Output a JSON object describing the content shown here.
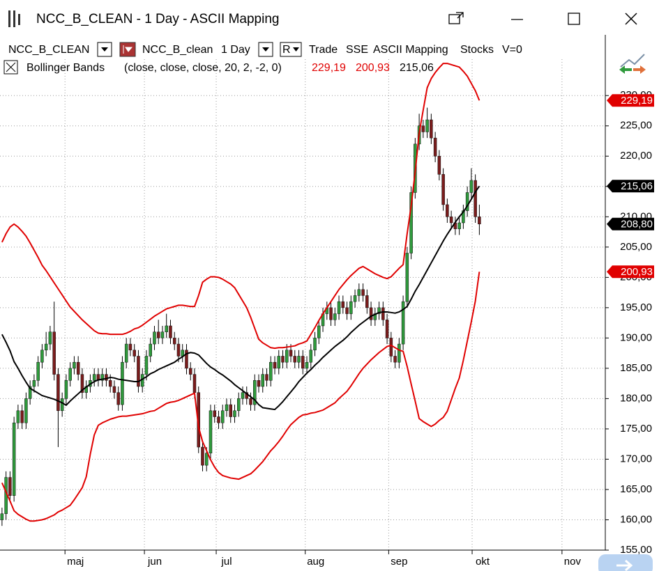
{
  "window": {
    "title": "NCC_B_CLEAN - 1 Day - ASCII Mapping"
  },
  "toolbar": {
    "symbol": "NCC_B_CLEAN",
    "name": "NCC_B_clean",
    "period": "1 Day",
    "mode": "R",
    "items": [
      "Trade",
      "SSE",
      "ASCII Mapping",
      "Stocks",
      "V=0"
    ]
  },
  "indicator": {
    "name": "Bollinger Bands",
    "params": "(close, close, close, 20, 2, -2, 0)",
    "values": [
      {
        "label": "229,19",
        "color": "#e00000"
      },
      {
        "label": "200,93",
        "color": "#e00000"
      },
      {
        "label": "215,06",
        "color": "#000000"
      }
    ]
  },
  "chart_data": {
    "type": "candlestick",
    "up_color": "#2f9a3c",
    "down_color": "#7a1c1c",
    "wick_color": "#000000",
    "x": [
      0,
      1,
      2,
      3,
      4,
      5,
      6,
      7,
      8,
      9,
      10,
      11,
      12,
      13,
      14,
      15,
      16,
      17,
      18,
      19,
      20,
      21,
      22,
      23,
      24,
      25,
      26,
      27,
      28,
      29,
      30,
      31,
      32,
      33,
      34,
      35,
      36,
      37,
      38,
      39,
      40,
      41,
      42,
      43,
      44,
      45,
      46,
      47,
      48,
      49,
      50,
      51,
      52,
      53,
      54,
      55,
      56,
      57,
      58,
      59,
      60,
      61,
      62,
      63,
      64,
      65,
      66,
      67,
      68,
      69,
      70,
      71,
      72,
      73,
      74,
      75,
      76,
      77,
      78,
      79,
      80,
      81,
      82,
      83,
      84,
      85,
      86,
      87,
      88,
      89,
      90,
      91,
      92,
      93,
      94,
      95,
      96,
      97,
      98,
      99,
      100,
      101,
      102,
      103,
      104,
      105,
      106,
      107,
      108,
      109,
      110,
      111,
      112,
      113,
      114,
      115,
      116,
      117,
      118,
      119
    ],
    "open": [
      160,
      161,
      167,
      164,
      176,
      178,
      176,
      180,
      182,
      183,
      186,
      188,
      189,
      191,
      184,
      178,
      180,
      183,
      185,
      186,
      184,
      181,
      182,
      183,
      184,
      183,
      184,
      183,
      182,
      181,
      179,
      186,
      189,
      188,
      187,
      182,
      184,
      187,
      189,
      191,
      190,
      191,
      192,
      190,
      189,
      187,
      188,
      185,
      184,
      181,
      172,
      169,
      171,
      178,
      177,
      176,
      178,
      179,
      177,
      178,
      180,
      181,
      180,
      179,
      183,
      182,
      184,
      183,
      186,
      185,
      187,
      186,
      188,
      187,
      186,
      187,
      185,
      186,
      188,
      190,
      192,
      194,
      195,
      193,
      194,
      196,
      195,
      194,
      196,
      197,
      198,
      197,
      195,
      193,
      194,
      195,
      193,
      190,
      187,
      186,
      189,
      196,
      204,
      214,
      222,
      225,
      224,
      226,
      223,
      220,
      217,
      212,
      210,
      209,
      208,
      209,
      211,
      214,
      216,
      210
    ],
    "high": [
      162,
      168,
      168,
      177,
      179,
      179,
      181,
      183,
      184,
      187,
      189,
      191,
      192,
      196,
      185,
      181,
      184,
      186,
      187,
      187,
      185,
      183,
      184,
      185,
      185,
      185,
      185,
      184,
      183,
      182,
      187,
      190,
      190,
      189,
      188,
      185,
      188,
      190,
      192,
      193,
      192,
      194,
      193,
      191,
      190,
      189,
      189,
      186,
      185,
      182,
      173,
      172,
      179,
      179,
      178,
      179,
      180,
      180,
      179,
      181,
      182,
      182,
      181,
      184,
      184,
      185,
      185,
      187,
      187,
      188,
      188,
      189,
      189,
      188,
      188,
      188,
      187,
      189,
      191,
      193,
      195,
      196,
      196,
      195,
      197,
      197,
      196,
      197,
      198,
      199,
      199,
      198,
      196,
      195,
      196,
      196,
      194,
      191,
      188,
      190,
      197,
      205,
      215,
      223,
      227,
      226,
      228,
      227,
      224,
      221,
      218,
      213,
      211,
      210,
      210,
      212,
      215,
      218,
      217,
      212
    ],
    "low": [
      159,
      160,
      163,
      163,
      175,
      175,
      175,
      179,
      181,
      182,
      185,
      187,
      188,
      183,
      172,
      177,
      179,
      182,
      184,
      183,
      180,
      180,
      181,
      182,
      182,
      182,
      182,
      181,
      180,
      178,
      178,
      185,
      187,
      186,
      181,
      181,
      183,
      186,
      188,
      189,
      189,
      190,
      189,
      188,
      186,
      186,
      184,
      183,
      180,
      171,
      168,
      168,
      170,
      176,
      175,
      175,
      177,
      176,
      176,
      177,
      179,
      179,
      178,
      178,
      181,
      181,
      182,
      182,
      184,
      184,
      185,
      185,
      186,
      185,
      185,
      184,
      184,
      185,
      187,
      189,
      191,
      193,
      192,
      192,
      193,
      194,
      193,
      193,
      195,
      196,
      196,
      194,
      192,
      192,
      193,
      192,
      189,
      186,
      185,
      185,
      188,
      195,
      203,
      213,
      221,
      223,
      223,
      222,
      219,
      216,
      211,
      209,
      208,
      207,
      207,
      208,
      210,
      213,
      209,
      207
    ],
    "close": [
      161,
      167,
      164,
      176,
      178,
      176,
      180,
      182,
      183,
      186,
      188,
      189,
      191,
      184,
      178,
      180,
      183,
      185,
      186,
      184,
      181,
      182,
      183,
      184,
      183,
      184,
      183,
      182,
      181,
      179,
      186,
      189,
      188,
      187,
      182,
      184,
      187,
      189,
      191,
      190,
      191,
      192,
      190,
      189,
      187,
      188,
      185,
      184,
      181,
      172,
      169,
      171,
      178,
      177,
      176,
      178,
      179,
      177,
      178,
      180,
      181,
      180,
      179,
      183,
      182,
      184,
      183,
      186,
      185,
      187,
      186,
      188,
      187,
      186,
      187,
      185,
      186,
      188,
      190,
      192,
      194,
      195,
      193,
      194,
      196,
      195,
      194,
      196,
      197,
      198,
      197,
      195,
      193,
      194,
      195,
      193,
      190,
      187,
      186,
      189,
      196,
      204,
      214,
      222,
      225,
      224,
      226,
      223,
      220,
      217,
      212,
      210,
      209,
      208,
      209,
      211,
      214,
      216,
      210,
      208.8
    ],
    "bands": {
      "color": "#e00000",
      "upper": [
        205.8,
        207.2,
        208.3,
        208.8,
        208.3,
        207.6,
        206.8,
        205.7,
        204.5,
        203.3,
        202.0,
        201.1,
        200.1,
        199.1,
        198.1,
        197.1,
        196.1,
        195.1,
        194.4,
        193.7,
        193.0,
        192.4,
        191.8,
        191.2,
        190.8,
        190.7,
        190.7,
        190.6,
        190.6,
        190.6,
        190.6,
        190.8,
        191.1,
        191.5,
        191.7,
        192.1,
        192.6,
        193.1,
        193.6,
        194.0,
        194.4,
        194.8,
        195.0,
        195.2,
        195.4,
        195.4,
        195.3,
        195.2,
        195.2,
        197.0,
        199.2,
        199.7,
        200.1,
        200.1,
        200.0,
        199.7,
        199.3,
        198.9,
        198.3,
        197.2,
        196.1,
        195.0,
        193.4,
        191.6,
        189.8,
        189.2,
        188.8,
        188.4,
        188.3,
        188.4,
        188.4,
        188.5,
        188.6,
        188.7,
        189.0,
        189.2,
        189.5,
        190.6,
        191.7,
        192.9,
        194.0,
        195.0,
        196.0,
        197.0,
        198.0,
        198.8,
        199.6,
        200.3,
        200.9,
        201.5,
        201.8,
        201.4,
        201.0,
        200.6,
        200.3,
        200.0,
        199.8,
        200.1,
        200.8,
        201.5,
        202.1,
        207.2,
        211.8,
        217.4,
        223.8,
        227.6,
        231.3,
        232.8,
        233.8,
        234.6,
        235.3,
        235.3,
        235.1,
        234.9,
        234.7,
        234.0,
        233.2,
        232.0,
        230.8,
        229.19
      ],
      "lower": [
        166.1,
        164.6,
        163.1,
        161.5,
        160.9,
        160.5,
        160.1,
        159.8,
        159.8,
        159.9,
        160.0,
        160.2,
        160.5,
        160.8,
        161.3,
        161.6,
        162.0,
        162.4,
        163.3,
        164.3,
        165.3,
        167.1,
        170.8,
        174.0,
        175.6,
        176.0,
        176.3,
        176.6,
        176.8,
        177.0,
        177.1,
        177.1,
        177.2,
        177.3,
        177.4,
        177.5,
        177.7,
        177.9,
        178.0,
        178.4,
        178.8,
        179.2,
        179.4,
        179.5,
        179.7,
        180.0,
        180.3,
        180.6,
        180.9,
        175.3,
        172.9,
        171.4,
        169.9,
        168.7,
        167.8,
        167.3,
        167.1,
        166.9,
        166.8,
        166.7,
        167.0,
        167.3,
        167.6,
        168.2,
        168.9,
        169.6,
        170.5,
        171.4,
        172.1,
        172.9,
        173.8,
        174.8,
        175.7,
        176.3,
        176.9,
        177.3,
        177.4,
        177.6,
        177.7,
        177.9,
        178.1,
        178.5,
        178.9,
        179.3,
        180.0,
        180.6,
        181.2,
        182.1,
        183.1,
        184.1,
        185.0,
        185.7,
        186.4,
        187.0,
        187.6,
        188.1,
        188.6,
        188.8,
        188.4,
        188.0,
        187.8,
        185.3,
        182.4,
        179.6,
        176.7,
        176.2,
        175.8,
        175.4,
        175.8,
        176.4,
        176.9,
        177.9,
        179.8,
        181.7,
        183.4,
        186.3,
        189.5,
        192.7,
        196.1,
        200.93
      ]
    },
    "middle": {
      "color": "#000000",
      "values": [
        190.6,
        189.3,
        187.9,
        186.1,
        185.0,
        183.8,
        182.7,
        181.7,
        181.3,
        180.9,
        180.5,
        180.3,
        180.1,
        179.9,
        179.6,
        179.3,
        178.9,
        179.6,
        180.2,
        180.8,
        181.4,
        181.9,
        182.4,
        182.8,
        183.1,
        183.2,
        183.3,
        183.5,
        183.4,
        183.2,
        183.1,
        183.0,
        182.9,
        182.8,
        182.8,
        183.2,
        183.6,
        184.1,
        184.4,
        184.8,
        185.1,
        185.4,
        185.7,
        186.0,
        186.5,
        186.9,
        187.4,
        187.6,
        187.5,
        187.2,
        186.5,
        185.8,
        185.2,
        184.8,
        184.3,
        183.9,
        183.4,
        182.9,
        182.3,
        181.8,
        181.3,
        180.8,
        180.3,
        179.8,
        179.0,
        178.5,
        178.4,
        178.3,
        178.2,
        178.8,
        179.5,
        180.3,
        181.1,
        181.9,
        182.8,
        183.5,
        184.2,
        184.8,
        185.5,
        186.1,
        186.8,
        187.4,
        188.0,
        188.6,
        189.1,
        189.6,
        190.2,
        190.9,
        191.5,
        192.1,
        192.6,
        193.1,
        193.6,
        193.9,
        194.2,
        194.3,
        194.3,
        194.2,
        194.1,
        194.3,
        194.7,
        195.2,
        196.4,
        197.7,
        198.8,
        200.0,
        201.2,
        202.4,
        203.6,
        204.8,
        206.0,
        207.1,
        208.1,
        209.1,
        210.0,
        210.8,
        211.8,
        212.9,
        214.1,
        215.06
      ]
    },
    "price_labels": [
      {
        "value": 229.19,
        "label": "229,19",
        "color": "#e00000"
      },
      {
        "value": 215.06,
        "label": "215,06",
        "color": "#000000"
      },
      {
        "value": 208.8,
        "label": "208,80",
        "color": "#000000"
      },
      {
        "value": 200.93,
        "label": "200,93",
        "color": "#e00000"
      }
    ],
    "xlim": [
      -0.5,
      150.4
    ],
    "xticks": [
      {
        "value": 15.7,
        "label": "maj"
      },
      {
        "value": 35.5,
        "label": "jun"
      },
      {
        "value": 53.4,
        "label": "jul"
      },
      {
        "value": 75.6,
        "label": "aug"
      },
      {
        "value": 96.4,
        "label": "sep"
      },
      {
        "value": 117.2,
        "label": "okt"
      },
      {
        "value": 139.6,
        "label": "nov"
      }
    ],
    "ylim": [
      155,
      236
    ],
    "yticks": [
      {
        "value": 155,
        "label": "155,00"
      },
      {
        "value": 160,
        "label": "160,00"
      },
      {
        "value": 165,
        "label": "165,00"
      },
      {
        "value": 170,
        "label": "170,00"
      },
      {
        "value": 175,
        "label": "175,00"
      },
      {
        "value": 180,
        "label": "180,00"
      },
      {
        "value": 185,
        "label": "185,00"
      },
      {
        "value": 190,
        "label": "190,00"
      },
      {
        "value": 195,
        "label": "195,00"
      },
      {
        "value": 200,
        "label": "200,00"
      },
      {
        "value": 205,
        "label": "205,00"
      },
      {
        "value": 210,
        "label": "210,00"
      },
      {
        "value": 215,
        "label": "215,00"
      },
      {
        "value": 220,
        "label": "220,00"
      },
      {
        "value": 225,
        "label": "225,00"
      },
      {
        "value": 230,
        "label": "230,00"
      }
    ],
    "grid": true
  }
}
